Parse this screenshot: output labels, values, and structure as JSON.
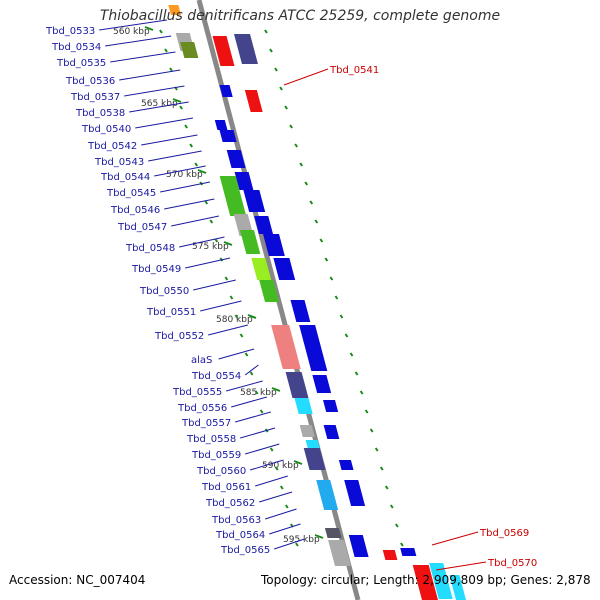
{
  "title": "Thiobacillus denitrificans ATCC 25259, complete genome",
  "accession": "Accession: NC_007404",
  "summary": "Topology: circular; Length: 2,909,809 bp; Genes: 2,878",
  "colors": {
    "backbone": "#888888",
    "gene_label_left": "#1a1aa0",
    "gene_label_right": "#cc0000",
    "tick": "#1a8a1a",
    "blue": "#0a0ad8",
    "navy": "#44448c",
    "red": "#ee1111",
    "pink": "#ee8080",
    "green": "#44bb22",
    "lightgreen": "#99ee22",
    "olive": "#6a8a22",
    "gray": "#aaaaaa",
    "cyan": "#22ddff",
    "skyblue": "#22aaee",
    "orange": "#ff9922",
    "darkgray": "#555566"
  },
  "kbp_labels": [
    "560 kbp",
    "565 kbp",
    "570 kbp",
    "575 kbp",
    "580 kbp",
    "585 kbp",
    "590 kbp",
    "595 kbp"
  ],
  "left_labels": [
    "Tbd_0533",
    "Tbd_0534",
    "Tbd_0535",
    "Tbd_0536",
    "Tbd_0537",
    "Tbd_0538",
    "Tbd_0540",
    "Tbd_0542",
    "Tbd_0543",
    "Tbd_0544",
    "Tbd_0545",
    "Tbd_0546",
    "Tbd_0547",
    "Tbd_0548",
    "Tbd_0549",
    "Tbd_0550",
    "Tbd_0551",
    "Tbd_0552",
    "alaS",
    "Tbd_0554",
    "Tbd_0555",
    "Tbd_0556",
    "Tbd_0557",
    "Tbd_0558",
    "Tbd_0559",
    "Tbd_0560",
    "Tbd_0561",
    "Tbd_0562",
    "Tbd_0563",
    "Tbd_0564",
    "Tbd_0565"
  ],
  "right_labels": [
    "Tbd_0541",
    "Tbd_0569",
    "Tbd_0570"
  ]
}
